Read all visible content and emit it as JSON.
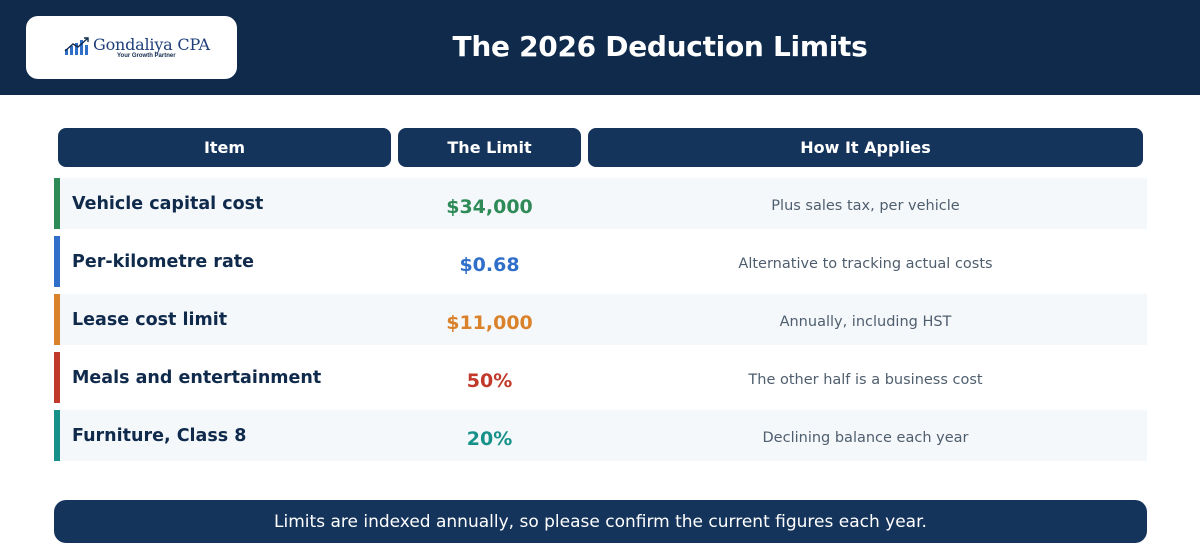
{
  "header": {
    "title": "The 2026 Deduction Limits",
    "logo": {
      "name": "Gondaliya CPA",
      "tagline": "Your Growth Partner",
      "icon": "bar-chart-logo-icon"
    }
  },
  "table": {
    "columns": [
      "Item",
      "The Limit",
      "How It Applies"
    ],
    "rows": [
      {
        "item": "Vehicle capital cost",
        "limit": "$34,000",
        "applies": "Plus sales tax, per vehicle",
        "color": "#2e8b57"
      },
      {
        "item": "Per-kilometre rate",
        "limit": "$0.68",
        "applies": "Alternative to tracking actual costs",
        "color": "#2f6fc9"
      },
      {
        "item": "Lease cost limit",
        "limit": "$11,000",
        "applies": "Annually, including HST",
        "color": "#d9822b"
      },
      {
        "item": "Meals and entertainment",
        "limit": "50%",
        "applies": "The other half is a business cost",
        "color": "#c0392b"
      },
      {
        "item": "Furniture, Class 8",
        "limit": "20%",
        "applies": "Declining balance each year",
        "color": "#16918a"
      }
    ]
  },
  "footer": {
    "note": "Limits are indexed annually, so please confirm the current figures each year."
  }
}
